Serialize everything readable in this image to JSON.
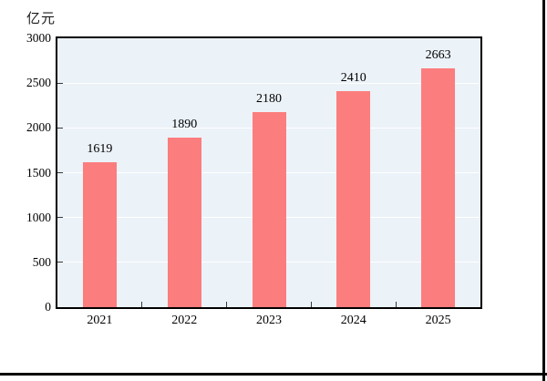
{
  "page": {
    "background": "#FFFFFF",
    "edge_border_color": "#000000"
  },
  "chart_data": {
    "type": "bar",
    "title": "",
    "ylabel": "亿元",
    "xlabel": "",
    "categories": [
      "2021",
      "2022",
      "2023",
      "2024",
      "2025"
    ],
    "values": [
      1619,
      1890,
      2180,
      2410,
      2663
    ],
    "data_labels": [
      "1619",
      "1890",
      "2180",
      "2410",
      "2663"
    ],
    "ylim": [
      0,
      3000
    ],
    "yticks": [
      0,
      500,
      1000,
      1500,
      2000,
      2500,
      3000
    ],
    "grid": true,
    "legend": false,
    "bar_color": "#FC7D7D",
    "plot_background": "#EBF2F8",
    "axis_color": "#000000",
    "gridline_color": "#FFFFFF",
    "tick_color": "#3A3A3A",
    "label_color": "#000000"
  }
}
